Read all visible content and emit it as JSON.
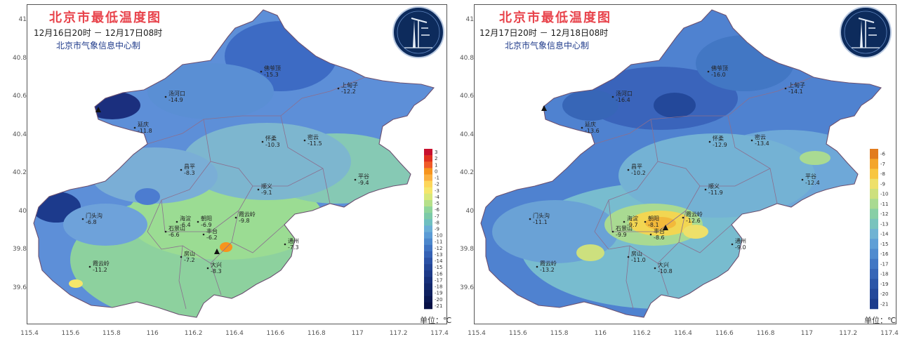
{
  "maps": [
    {
      "title": "北京市最低温度图",
      "time_range": "12月16日20时 － 12月17日08时",
      "maker": "北京市气象信息中心制",
      "unit": "单位：℃",
      "colorbar_ticks": [
        "3",
        "2",
        "1",
        "0",
        "-1",
        "-2",
        "-3",
        "-4",
        "-5",
        "-6",
        "-7",
        "-8",
        "-9",
        "-10",
        "-11",
        "-12",
        "-13",
        "-14",
        "-15",
        "-16",
        "-17",
        "-18",
        "-19",
        "-20",
        "-21"
      ],
      "colorbar_colors": [
        "#c8102e",
        "#e0301e",
        "#f05a28",
        "#f7941d",
        "#fbb040",
        "#fdd65a",
        "#f5e66b",
        "#d8e87a",
        "#b6e08a",
        "#8fd59b",
        "#7ccaa8",
        "#6fbfc0",
        "#6aaed6",
        "#5b9bd5",
        "#4c87cc",
        "#3f73c2",
        "#3562b5",
        "#2b52a6",
        "#234596",
        "#1d3a88",
        "#17307a",
        "#12286c",
        "#0e205f",
        "#0a1852",
        "#061045"
      ],
      "lat_ticks": [
        "41",
        "40.8",
        "40.6",
        "40.4",
        "40.2",
        "40",
        "39.8",
        "39.6"
      ],
      "lon_ticks": [
        "115.4",
        "115.6",
        "115.8",
        "116",
        "116.2",
        "116.4",
        "116.6",
        "116.8",
        "117",
        "117.2",
        "117.4"
      ],
      "stations": [
        {
          "name": "佛爷顶",
          "value": "-15.3"
        },
        {
          "name": "汤河口",
          "value": "-14.9"
        },
        {
          "name": "上甸子",
          "value": "-12.2"
        },
        {
          "name": "延庆",
          "value": "-11.8"
        },
        {
          "name": "怀柔",
          "value": "-10.3"
        },
        {
          "name": "密云",
          "value": "-11.5"
        },
        {
          "name": "昌平",
          "value": "-8.3"
        },
        {
          "name": "顺义",
          "value": "-9.1"
        },
        {
          "name": "平谷",
          "value": "-9.4"
        },
        {
          "name": "门头沟",
          "value": "-6.8"
        },
        {
          "name": "海淀",
          "value": "-6.4"
        },
        {
          "name": "朝阳",
          "value": "-6.9"
        },
        {
          "name": "石景山",
          "value": "-6.6"
        },
        {
          "name": "丰台",
          "value": "-6.2"
        },
        {
          "name": "通州",
          "value": "-7.3"
        },
        {
          "name": "霞云岭",
          "value": "-11.2"
        },
        {
          "name": "房山",
          "value": "-7.2"
        },
        {
          "name": "大兴",
          "value": "-8.3"
        },
        {
          "name": "霞云岭",
          "value": "-9.8"
        }
      ]
    },
    {
      "title": "北京市最低温度图",
      "time_range": "12月17日20时 － 12月18日08时",
      "maker": "北京市气象信息中心制",
      "unit": "单位：℃",
      "colorbar_ticks": [
        "-6",
        "-7",
        "-8",
        "-9",
        "-10",
        "-11",
        "-12",
        "-13",
        "-14",
        "-15",
        "-16",
        "-17",
        "-18",
        "-19",
        "-20",
        "-21"
      ],
      "colorbar_colors": [
        "#e27c1e",
        "#f4a52a",
        "#f8c640",
        "#eee06a",
        "#cde07e",
        "#a9da92",
        "#88cfa6",
        "#79c3bd",
        "#70b3d3",
        "#5f9fd6",
        "#508bcf",
        "#4277c4",
        "#3766b7",
        "#2c56a8",
        "#23489a",
        "#1c3c8c"
      ],
      "lat_ticks": [
        "41",
        "40.8",
        "40.6",
        "40.4",
        "40.2",
        "40",
        "39.8",
        "39.6"
      ],
      "lon_ticks": [
        "115.4",
        "115.6",
        "115.8",
        "116",
        "116.2",
        "116.4",
        "116.6",
        "116.8",
        "117",
        "117.2",
        "117.4"
      ],
      "stations": [
        {
          "name": "佛爷顶",
          "value": "-16.0"
        },
        {
          "name": "汤河口",
          "value": "-16.4"
        },
        {
          "name": "上甸子",
          "value": "-14.1"
        },
        {
          "name": "延庆",
          "value": "-13.6"
        },
        {
          "name": "怀柔",
          "value": "-12.9"
        },
        {
          "name": "密云",
          "value": "-13.4"
        },
        {
          "name": "昌平",
          "value": "-10.2"
        },
        {
          "name": "顺义",
          "value": "-11.9"
        },
        {
          "name": "平谷",
          "value": "-12.4"
        },
        {
          "name": "门头沟",
          "value": "-11.1"
        },
        {
          "name": "海淀",
          "value": "-9.7"
        },
        {
          "name": "朝阳",
          "value": "-8.1"
        },
        {
          "name": "石景山",
          "value": "-9.9"
        },
        {
          "name": "丰台",
          "value": "-8.6"
        },
        {
          "name": "通州",
          "value": "-9.0"
        },
        {
          "name": "霞云岭",
          "value": "-13.2"
        },
        {
          "name": "房山",
          "value": "-11.0"
        },
        {
          "name": "大兴",
          "value": "-10.8"
        },
        {
          "name": "霞云岭",
          "value": "-12.6"
        }
      ]
    }
  ]
}
